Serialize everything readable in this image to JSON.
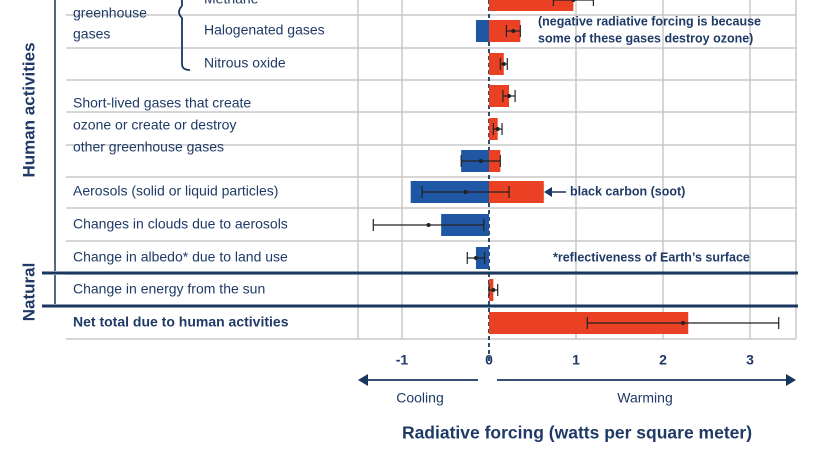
{
  "chart_data": {
    "type": "bar",
    "orientation": "horizontal",
    "xlabel": "Radiative forcing (watts per square meter)",
    "xlim": [
      -1.5,
      3.5
    ],
    "xticks": [
      -1,
      0,
      1,
      2,
      3
    ],
    "xtick_labels": [
      "-1",
      "0",
      "1",
      "2",
      "3"
    ],
    "direction_labels": {
      "cooling": "Cooling",
      "warming": "Warming"
    },
    "group_labels": {
      "human": "Human activities",
      "natural": "Natural",
      "greenhouse": "greenhouse gases"
    },
    "colors": {
      "warming": "#ea4125",
      "cooling": "#1f57a4",
      "text": "#1f3a66",
      "grid": "#c8c8c8",
      "divider": "#1a3760"
    },
    "rows": [
      {
        "label": "Methane",
        "value": 0.97,
        "err_low": 0.74,
        "err_high": 1.2,
        "show_error": true
      },
      {
        "label": "Halogenated gases",
        "value": 0.36,
        "err_low": 0.2,
        "err_high": 0.36,
        "show_error": true,
        "negative_part": -0.15
      },
      {
        "label": "Nitrous oxide",
        "value": 0.17,
        "err_low": 0.13,
        "err_high": 0.21,
        "show_error": true
      },
      {
        "label": "Short-lived gases that create ozone or create or destroy other greenhouse gases",
        "value": 0.23,
        "err_low": 0.16,
        "err_high": 0.3,
        "show_error": true
      },
      {
        "label": "",
        "value": 0.1,
        "err_low": 0.05,
        "err_high": 0.15,
        "show_error": true
      },
      {
        "label": "",
        "value": -0.32,
        "err_low": -0.32,
        "err_high": 0.13,
        "show_error": true,
        "positive_part": 0.13
      },
      {
        "label": "Aerosols (solid or liquid particles)",
        "value": -0.9,
        "err_low": -0.77,
        "err_high": 0.23,
        "show_error": true,
        "positive_part": 0.63
      },
      {
        "label": "Changes in clouds due to aerosols",
        "value": -0.55,
        "err_low": -1.33,
        "err_high": -0.06,
        "show_error": true
      },
      {
        "label": "Change in albedo* due to land use",
        "value": -0.15,
        "err_low": -0.25,
        "err_high": -0.05,
        "show_error": true
      },
      {
        "label": "Change in energy from the sun",
        "value": 0.05,
        "err_low": 0.0,
        "err_high": 0.1,
        "show_error": true
      },
      {
        "label": "Net total due to human activities",
        "value": 2.29,
        "err_low": 1.13,
        "err_high": 3.33,
        "show_error": true,
        "bold": true
      }
    ],
    "annotations": {
      "halogenated": [
        "(negative radiative forcing is because",
        "some of these gases destroy ozone)"
      ],
      "black_carbon": "black carbon (soot)",
      "albedo_note": "*reflectiveness of Earth’s surface"
    },
    "top_group_lines": [
      "greenhouse",
      "gases"
    ],
    "short_lived_lines": [
      "Short-lived gases that create",
      "ozone or create or destroy",
      "other greenhouse gases"
    ]
  }
}
